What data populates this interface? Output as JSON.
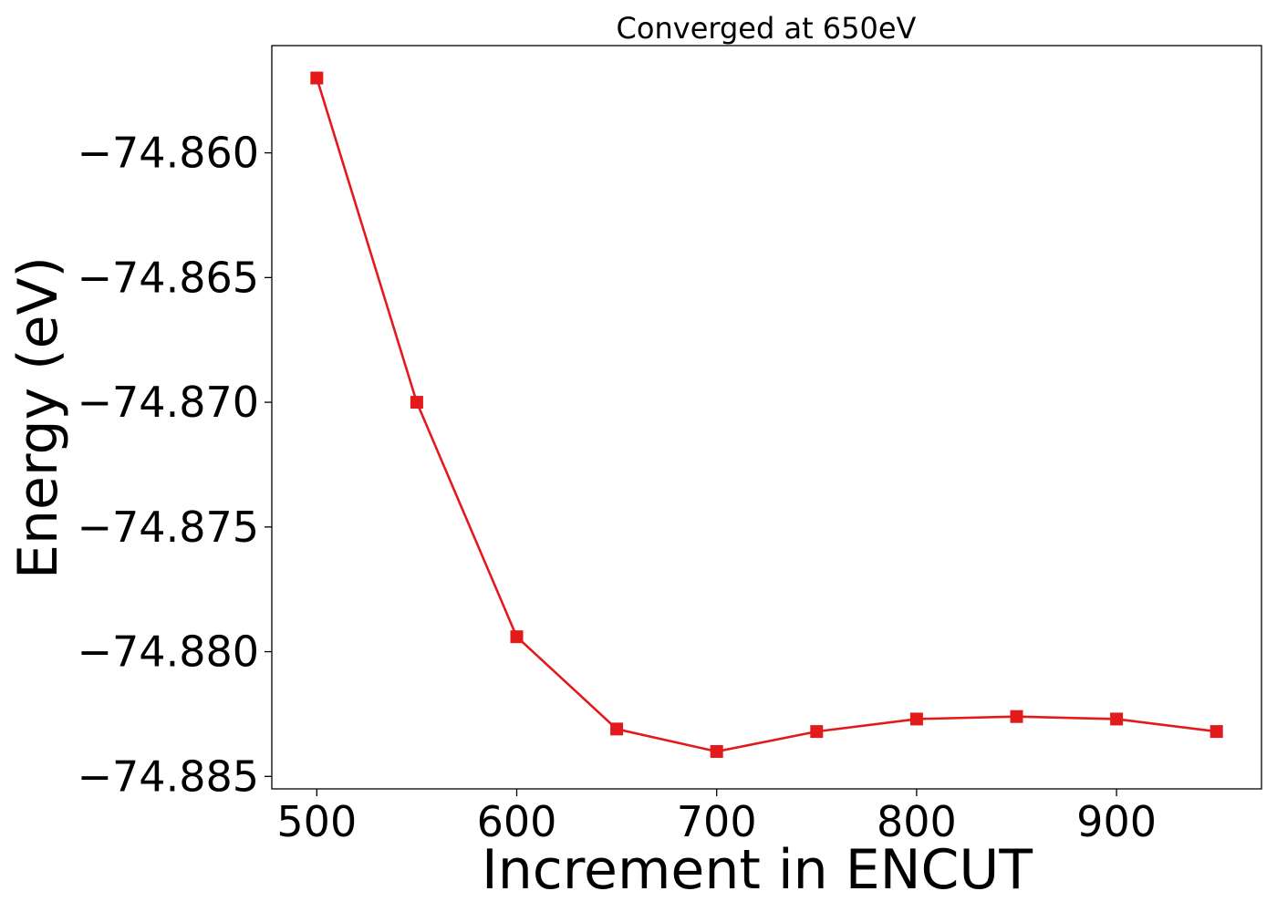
{
  "chart_data": {
    "type": "line",
    "title": "Converged at 650eV",
    "xlabel": "Increment in ENCUT",
    "ylabel": "Energy (eV)",
    "x": [
      500,
      550,
      600,
      650,
      700,
      750,
      800,
      850,
      900,
      950
    ],
    "series": [
      {
        "values": [
          -74.857,
          -74.87,
          -74.8794,
          -74.8831,
          -74.884,
          -74.8832,
          -74.8827,
          -74.8826,
          -74.8827,
          -74.8832
        ],
        "color": "#e31a1c",
        "marker": "square"
      }
    ],
    "xlim": [
      477.5,
      972.5
    ],
    "ylim": [
      -74.8855,
      -74.8557
    ],
    "xticks": [
      500,
      600,
      700,
      800,
      900
    ],
    "xtick_labels": [
      "500",
      "600",
      "700",
      "800",
      "900"
    ],
    "yticks": [
      -74.86,
      -74.865,
      -74.87,
      -74.875,
      -74.88,
      -74.885
    ],
    "ytick_labels": [
      "−74.860",
      "−74.865",
      "−74.870",
      "−74.875",
      "−74.880",
      "−74.885"
    ],
    "grid": false,
    "legend": "none"
  }
}
